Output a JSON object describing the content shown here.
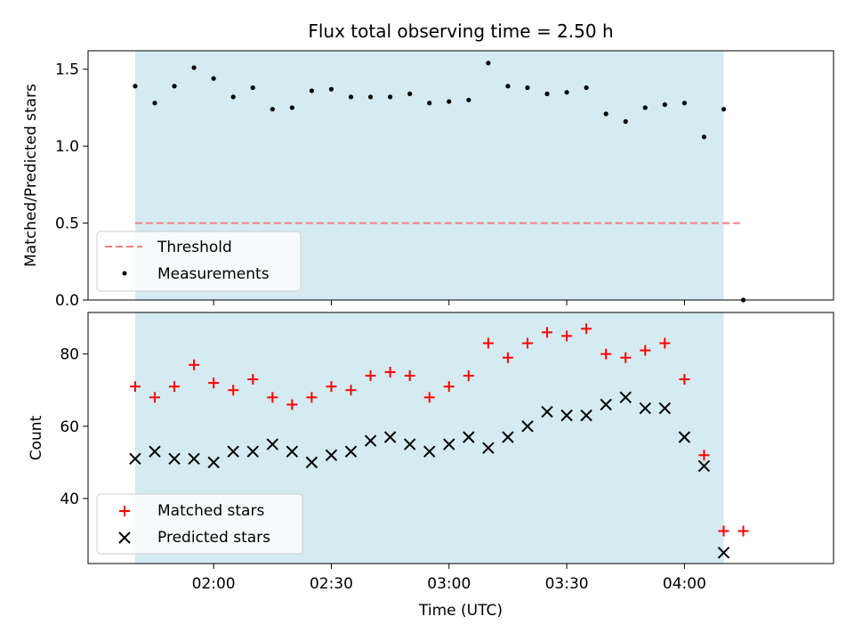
{
  "chart_data": [
    {
      "type": "scatter",
      "title": "Flux total observing time = 2.50 h",
      "xlabel": "",
      "ylabel": "Matched/Predicted stars",
      "ylim": [
        0,
        1.62
      ],
      "yticks": [
        "0.0",
        "0.5",
        "1.0",
        "1.5"
      ],
      "legend_position": "lower-left",
      "shaded_interval": [
        "01:40",
        "04:10"
      ],
      "shade_color": "#d4ebf1",
      "threshold": {
        "name": "Threshold",
        "value": 0.5,
        "x_range": [
          "01:40",
          "04:15"
        ],
        "color": "#f08080",
        "style": "dashed"
      },
      "series": [
        {
          "name": "Measurements",
          "marker": "dot",
          "color": "#000000",
          "x": [
            "01:40",
            "01:45",
            "01:50",
            "01:55",
            "02:00",
            "02:05",
            "02:10",
            "02:15",
            "02:20",
            "02:25",
            "02:30",
            "02:35",
            "02:40",
            "02:45",
            "02:50",
            "02:55",
            "03:00",
            "03:05",
            "03:10",
            "03:15",
            "03:20",
            "03:25",
            "03:30",
            "03:35",
            "03:40",
            "03:45",
            "03:50",
            "03:55",
            "04:00",
            "04:05",
            "04:10",
            "04:15"
          ],
          "values": [
            1.39,
            1.28,
            1.39,
            1.51,
            1.44,
            1.32,
            1.38,
            1.24,
            1.25,
            1.36,
            1.37,
            1.32,
            1.32,
            1.32,
            1.34,
            1.28,
            1.29,
            1.3,
            1.54,
            1.39,
            1.38,
            1.34,
            1.35,
            1.38,
            1.21,
            1.16,
            1.25,
            1.27,
            1.28,
            1.06,
            1.24,
            0.0
          ]
        }
      ]
    },
    {
      "type": "scatter",
      "title": "",
      "xlabel": "Time (UTC)",
      "ylabel": "Count",
      "ylim": [
        22,
        91.5
      ],
      "yticks": [
        "40",
        "60",
        "80"
      ],
      "xticks": [
        "02:00",
        "02:30",
        "03:00",
        "03:30",
        "04:00"
      ],
      "xlim": [
        "01:28",
        "04:38"
      ],
      "legend_position": "lower-left",
      "shaded_interval": [
        "01:40",
        "04:10"
      ],
      "series": [
        {
          "name": "Matched stars",
          "marker": "plus",
          "color": "#ff0000",
          "x": [
            "01:40",
            "01:45",
            "01:50",
            "01:55",
            "02:00",
            "02:05",
            "02:10",
            "02:15",
            "02:20",
            "02:25",
            "02:30",
            "02:35",
            "02:40",
            "02:45",
            "02:50",
            "02:55",
            "03:00",
            "03:05",
            "03:10",
            "03:15",
            "03:20",
            "03:25",
            "03:30",
            "03:35",
            "03:40",
            "03:45",
            "03:50",
            "03:55",
            "04:00",
            "04:05",
            "04:10",
            "04:15"
          ],
          "values": [
            71,
            68,
            71,
            77,
            72,
            70,
            73,
            68,
            66,
            68,
            71,
            70,
            74,
            75,
            74,
            68,
            71,
            74,
            83,
            79,
            83,
            86,
            85,
            87,
            80,
            79,
            81,
            83,
            73,
            52,
            31,
            31
          ]
        },
        {
          "name": "Predicted stars",
          "marker": "x",
          "color": "#000000",
          "x": [
            "01:40",
            "01:45",
            "01:50",
            "01:55",
            "02:00",
            "02:05",
            "02:10",
            "02:15",
            "02:20",
            "02:25",
            "02:30",
            "02:35",
            "02:40",
            "02:45",
            "02:50",
            "02:55",
            "03:00",
            "03:05",
            "03:10",
            "03:15",
            "03:20",
            "03:25",
            "03:30",
            "03:35",
            "03:40",
            "03:45",
            "03:50",
            "03:55",
            "04:00",
            "04:05",
            "04:10"
          ],
          "values": [
            51,
            53,
            51,
            51,
            50,
            53,
            53,
            55,
            53,
            50,
            52,
            53,
            56,
            57,
            55,
            53,
            55,
            57,
            54,
            57,
            60,
            64,
            63,
            63,
            66,
            68,
            65,
            65,
            57,
            49,
            25
          ]
        }
      ]
    }
  ]
}
